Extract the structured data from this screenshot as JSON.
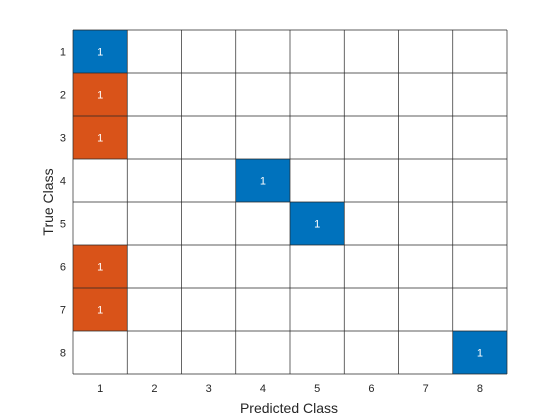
{
  "chart_data": {
    "type": "heatmap",
    "xlabel": "Predicted Class",
    "ylabel": "True Class",
    "x_categories": [
      "1",
      "2",
      "3",
      "4",
      "5",
      "6",
      "7",
      "8"
    ],
    "y_categories": [
      "1",
      "2",
      "3",
      "4",
      "5",
      "6",
      "7",
      "8"
    ],
    "cells": [
      {
        "true": "1",
        "predicted": "1",
        "value": 1,
        "kind": "correct"
      },
      {
        "true": "2",
        "predicted": "1",
        "value": 1,
        "kind": "incorrect"
      },
      {
        "true": "3",
        "predicted": "1",
        "value": 1,
        "kind": "incorrect"
      },
      {
        "true": "4",
        "predicted": "4",
        "value": 1,
        "kind": "correct"
      },
      {
        "true": "5",
        "predicted": "5",
        "value": 1,
        "kind": "correct"
      },
      {
        "true": "6",
        "predicted": "1",
        "value": 1,
        "kind": "incorrect"
      },
      {
        "true": "7",
        "predicted": "1",
        "value": 1,
        "kind": "incorrect"
      },
      {
        "true": "8",
        "predicted": "8",
        "value": 1,
        "kind": "correct"
      }
    ],
    "colors": {
      "correct": "#0072BD",
      "incorrect": "#D95319",
      "grid": "#262626",
      "background": "#ffffff"
    }
  }
}
